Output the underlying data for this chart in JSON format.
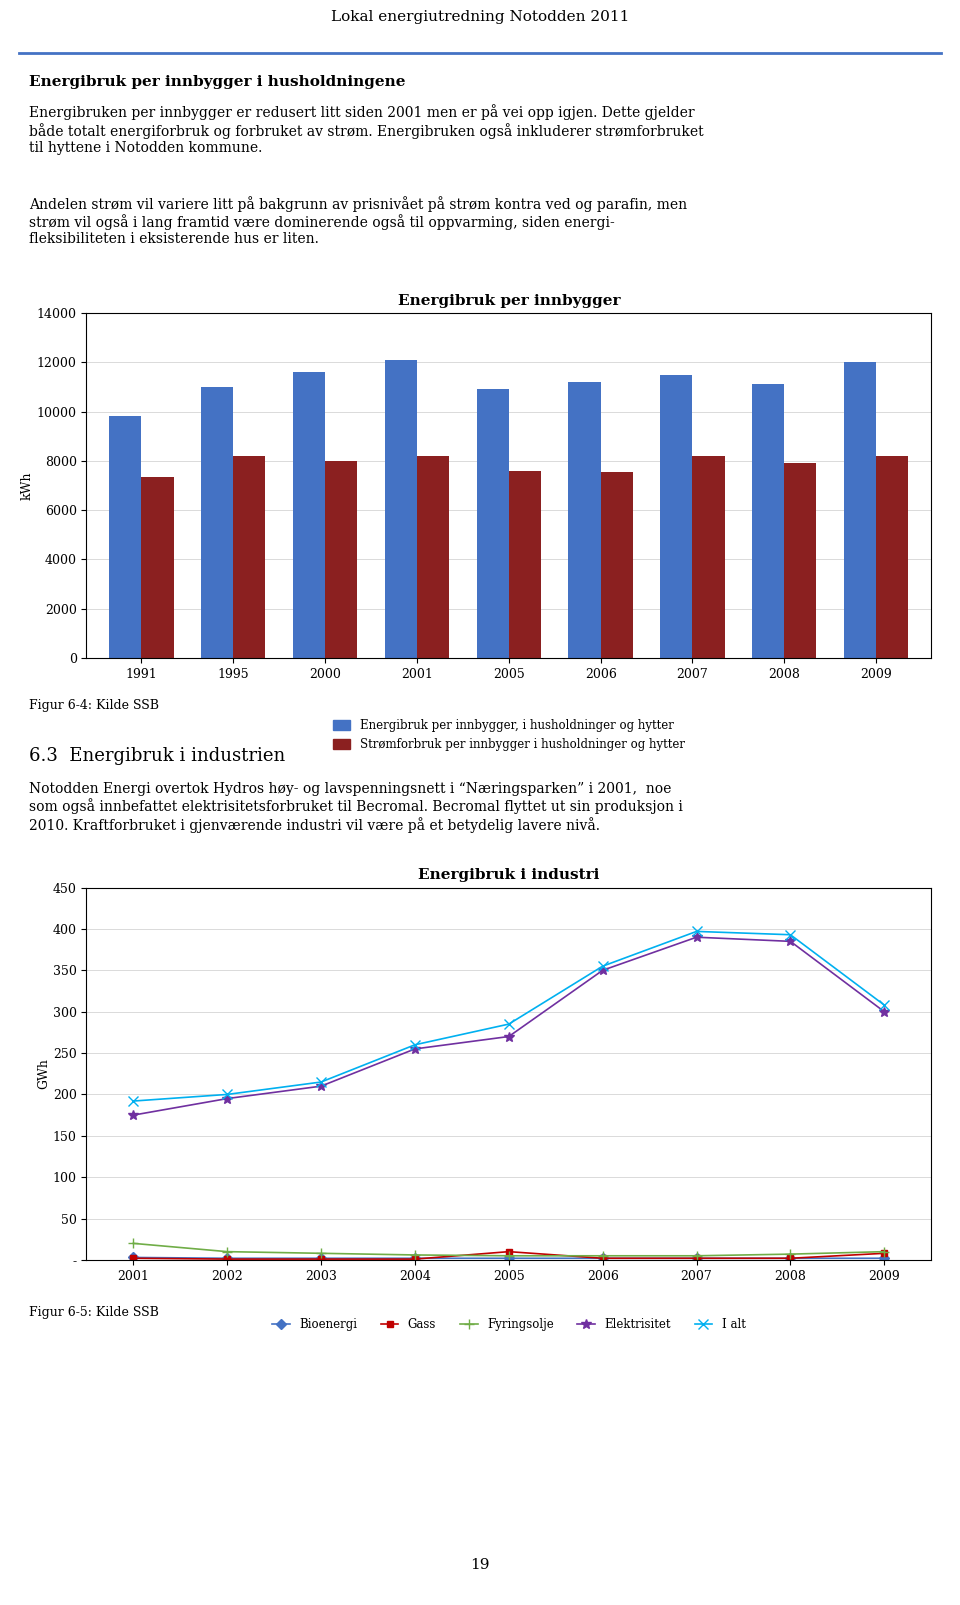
{
  "page_title": "Lokal energiutredning Notodden 2011",
  "section1_title": "Energibruk per innbygger i husholdningene",
  "section1_text1": "Energibruken per innbygger er redusert litt siden 2001 men er på vei opp igjen. Dette gjelder\nbåde totalt energiforbruk og forbruket av strøm. Energibruken også inkluderer strømforbruket\ntil hyttene i Notodden kommune.",
  "section1_text2": "Andelen strøm vil variere litt på bakgrunn av prisnivået på strøm kontra ved og parafin, men\nstrøm vil også i lang framtid være dominerende også til oppvarming, siden energi-\nfleksibiliteten i eksisterende hus er liten.",
  "chart1_title": "Energibruk per innbygger",
  "chart1_ylabel": "kWh",
  "chart1_years": [
    "1991",
    "1995",
    "2000",
    "2001",
    "2005",
    "2006",
    "2007",
    "2008",
    "2009"
  ],
  "chart1_blue": [
    9800,
    11000,
    11600,
    12100,
    10900,
    11200,
    11500,
    11100,
    12000
  ],
  "chart1_red": [
    7350,
    8200,
    8000,
    8200,
    7600,
    7550,
    8200,
    7900,
    8200
  ],
  "chart1_blue_color": "#4472C4",
  "chart1_red_color": "#8B2020",
  "chart1_ylim": [
    0,
    14000
  ],
  "chart1_yticks": [
    0,
    2000,
    4000,
    6000,
    8000,
    10000,
    12000,
    14000
  ],
  "chart1_legend1": "Energibruk per innbygger, i husholdninger og hytter",
  "chart1_legend2": "Strømforbruk per innbygger i husholdninger og hytter",
  "chart1_caption": "Figur 6-4: Kilde SSB",
  "section2_title": "6.3  Energibruk i industrien",
  "section2_text": "Notodden Energi overtok Hydros høy- og lavspenningsnett i “Næringsparken” i 2001,  noe\nsom også innbefattet elektrisitetsforbruket til Becromal. Becromal flyttet ut sin produksjon i\n2010. Kraftforbruket i gjenværende industri vil være på et betydelig lavere nivå.",
  "chart2_title": "Energibruk i industri",
  "chart2_ylabel": "GWh",
  "chart2_years": [
    2001,
    2002,
    2003,
    2004,
    2005,
    2006,
    2007,
    2008,
    2009
  ],
  "chart2_bioenergi": [
    3,
    2,
    2,
    2,
    2,
    2,
    2,
    2,
    2
  ],
  "chart2_gass": [
    2,
    1,
    1,
    1,
    10,
    2,
    2,
    2,
    8
  ],
  "chart2_fyringsolje": [
    20,
    10,
    8,
    6,
    5,
    5,
    5,
    7,
    10
  ],
  "chart2_elektrisitet": [
    175,
    195,
    210,
    255,
    270,
    350,
    390,
    385,
    300
  ],
  "chart2_ialt": [
    192,
    200,
    215,
    260,
    285,
    355,
    397,
    393,
    308
  ],
  "chart2_bioenergi_color": "#4472C4",
  "chart2_gass_color": "#C00000",
  "chart2_fyringsolje_color": "#70AD47",
  "chart2_elektrisitet_color": "#7030A0",
  "chart2_ialt_color": "#00B0F0",
  "chart2_ylim": [
    0,
    450
  ],
  "chart2_yticks": [
    0,
    50,
    100,
    150,
    200,
    250,
    300,
    350,
    400,
    450
  ],
  "chart2_caption": "Figur 6-5: Kilde SSB",
  "page_number": "19",
  "background_color": "#FFFFFF"
}
